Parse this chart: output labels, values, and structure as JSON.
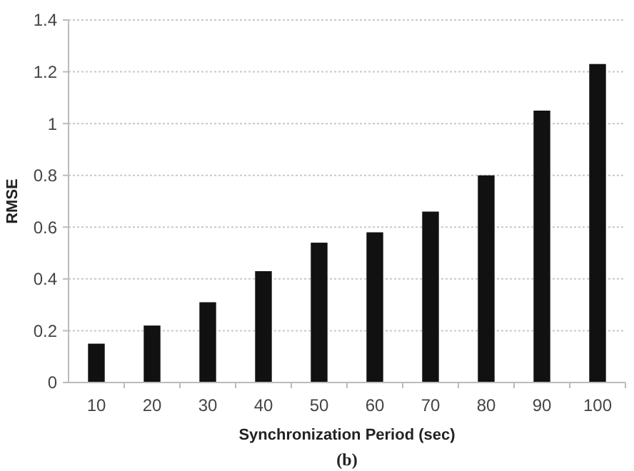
{
  "chart_data": {
    "type": "bar",
    "xlabel": "Synchronization Period (sec)",
    "ylabel": "RMSE",
    "annotations": [
      "(b)"
    ],
    "categories": [
      "10",
      "20",
      "30",
      "40",
      "50",
      "60",
      "70",
      "80",
      "90",
      "100"
    ],
    "values": [
      0.15,
      0.22,
      0.31,
      0.43,
      0.54,
      0.58,
      0.66,
      0.8,
      1.05,
      1.23
    ],
    "color": "#111111",
    "ylim": [
      0,
      1.4
    ],
    "yticks": [
      0,
      {
        "value": 0.2,
        "label": "0.2"
      },
      {
        "value": 0.4,
        "label": "0.4"
      },
      {
        "value": 0.6,
        "label": "0.6"
      },
      {
        "value": 0.8,
        "label": "0.8"
      },
      1,
      {
        "value": 1.2,
        "label": "1.2"
      },
      {
        "value": 1.4,
        "label": "1.4"
      }
    ],
    "grid": "y"
  }
}
